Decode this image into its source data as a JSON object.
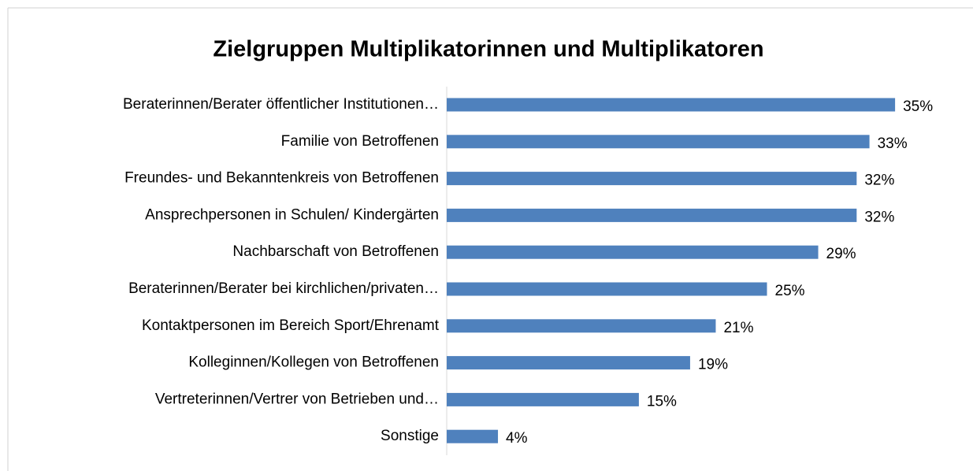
{
  "chart_data": {
    "type": "bar",
    "orientation": "horizontal",
    "title": "Zielgruppen Multiplikatorinnen und Multiplikatoren",
    "categories": [
      "Beraterinnen/Berater öffentlicher Institutionen…",
      "Familie von Betroffenen",
      "Freundes- und Bekanntenkreis von Betroffenen",
      "Ansprechpersonen in Schulen/ Kindergärten",
      "Nachbarschaft von Betroffenen",
      "Beraterinnen/Berater bei kirchlichen/privaten…",
      "Kontaktpersonen im Bereich Sport/Ehrenamt",
      "Kolleginnen/Kollegen von Betroffenen",
      "Vertreterinnen/Vertrer von Betrieben und…",
      "Sonstige"
    ],
    "values": [
      35,
      33,
      32,
      32,
      29,
      25,
      21,
      19,
      15,
      4
    ],
    "value_labels": [
      "35%",
      "33%",
      "32%",
      "32%",
      "29%",
      "25%",
      "21%",
      "19%",
      "15%",
      "4%"
    ],
    "color": "#4f81bd"
  }
}
